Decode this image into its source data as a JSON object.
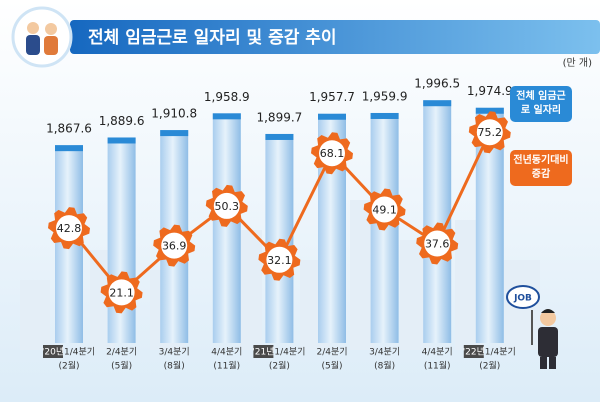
{
  "chart_data": {
    "type": "bar-line",
    "title": "전체 임금근로 일자리 및 증감 추이",
    "unit": "(만 개)",
    "categories": [
      "1/4분기",
      "2/4분기",
      "3/4분기",
      "4/4분기",
      "1/4분기",
      "2/4분기",
      "3/4분기",
      "4/4분기",
      "1/4분기"
    ],
    "year_labels": [
      "'20년",
      null,
      null,
      null,
      "'21년",
      null,
      null,
      null,
      "'22년"
    ],
    "months": [
      "(2월)",
      "(5월)",
      "(8월)",
      "(11월)",
      "(2월)",
      "(5월)",
      "(8월)",
      "(11월)",
      "(2월)"
    ],
    "ylim": [
      1300,
      2000
    ],
    "y2lim": [
      4,
      80
    ],
    "series": [
      {
        "name": "전체 임금근로 일자리",
        "color": "#2a8ad6",
        "values": [
          1867.6,
          1889.6,
          1910.8,
          1958.9,
          1899.7,
          1957.7,
          1959.9,
          1996.5,
          1974.9
        ],
        "value_labels": [
          "1,867.6",
          "1,889.6",
          "1,910.8",
          "1,958.9",
          "1,899.7",
          "1,957.7",
          "1,959.9",
          "1,996.5",
          "1,974.9"
        ]
      },
      {
        "name": "전년동기대비 증감",
        "color": "#ee6a1e",
        "axis": "y2",
        "values": [
          42.8,
          21.1,
          36.9,
          50.3,
          32.1,
          68.1,
          49.1,
          37.6,
          75.2
        ]
      }
    ],
    "job_sign": "JOB"
  }
}
